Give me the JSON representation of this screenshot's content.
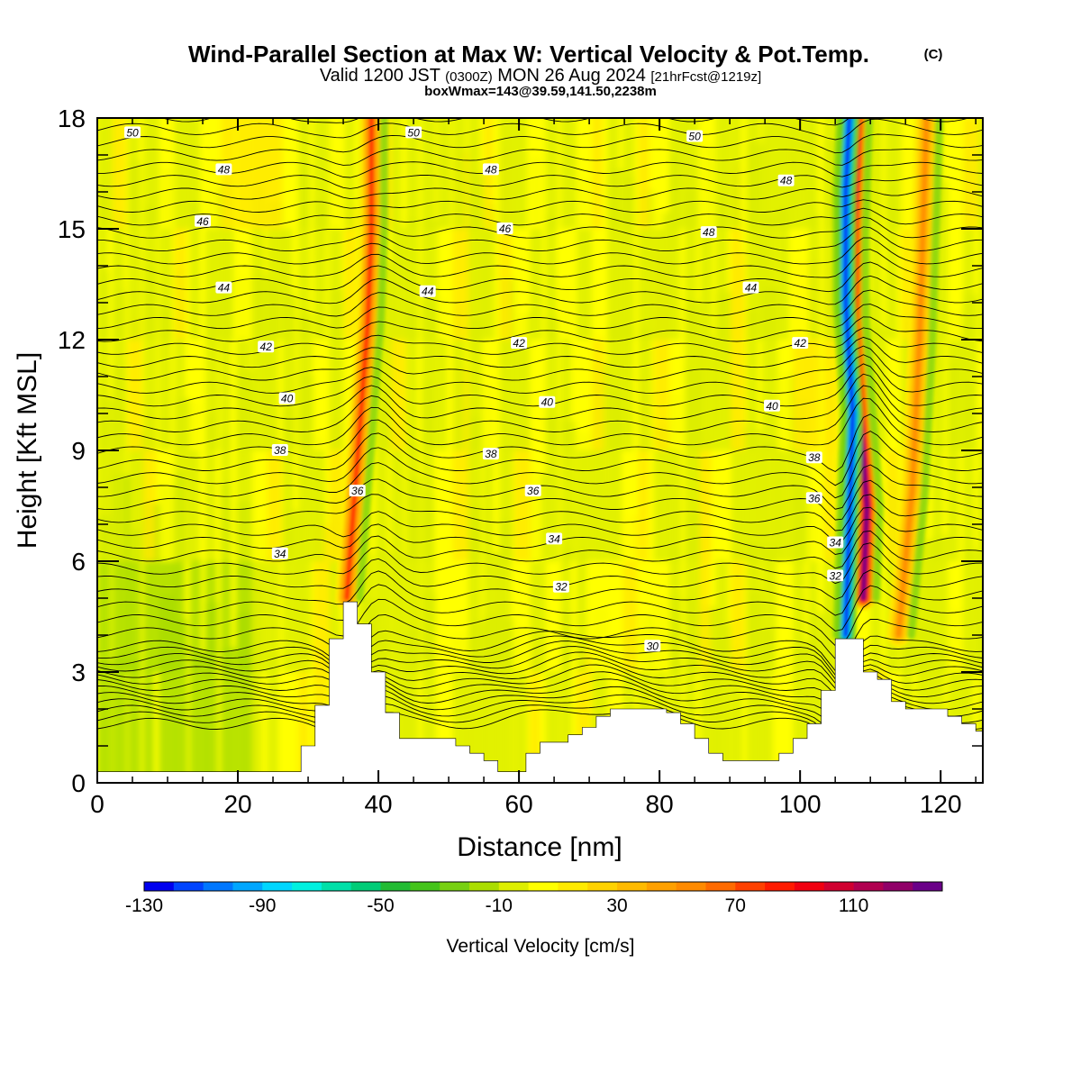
{
  "header": {
    "title": "Wind-Parallel Section at Max W: Vertical Velocity & Pot.Temp.",
    "copyright": "(C)",
    "valid_prefix": "Valid 1200 JST",
    "valid_utc": "(0300Z)",
    "valid_date": "MON 26 Aug 2024",
    "forecast": "[21hrFcst@1219z]",
    "box_info": "boxWmax=143@39.59,141.50,2238m"
  },
  "chart_data": {
    "type": "heatmap",
    "xlabel": "Distance [nm]",
    "ylabel": "Height [Kft MSL]",
    "xlim": [
      0,
      126
    ],
    "ylim": [
      0,
      18
    ],
    "x_ticks": [
      0,
      20,
      40,
      60,
      80,
      100,
      120
    ],
    "y_ticks": [
      0,
      3,
      6,
      9,
      12,
      15,
      18
    ],
    "grid": false,
    "colorbar": {
      "title": "Vertical Velocity [cm/s]",
      "min": -130,
      "max": 140,
      "step": 10,
      "tick_labels": [
        "-130",
        "-90",
        "-50",
        "-10",
        "30",
        "70",
        "110"
      ],
      "tick_values": [
        -130,
        -90,
        -50,
        -10,
        30,
        70,
        110
      ],
      "colors": [
        "#0000ee",
        "#0044ff",
        "#0077ff",
        "#00a6ff",
        "#00d6ff",
        "#00f0e0",
        "#00e0a8",
        "#00cc77",
        "#22bb33",
        "#44c41a",
        "#77d011",
        "#aadd00",
        "#ddee00",
        "#ffff00",
        "#ffea00",
        "#ffd200",
        "#ffba00",
        "#ffa000",
        "#ff8a00",
        "#ff6a00",
        "#ff4000",
        "#ff1a00",
        "#f00010",
        "#d00030",
        "#b00050",
        "#900068",
        "#6a0088"
      ]
    },
    "terrain": {
      "x": [
        0,
        28,
        29,
        31,
        33,
        35,
        37,
        39,
        41,
        43,
        45,
        47,
        49,
        51,
        53,
        55,
        57,
        59,
        61,
        63,
        65,
        67,
        69,
        71,
        73,
        75,
        77,
        79,
        81,
        83,
        85,
        87,
        89,
        91,
        93,
        95,
        97,
        99,
        101,
        103,
        105,
        107,
        109,
        111,
        113,
        115,
        117,
        119,
        121,
        123,
        125,
        126
      ],
      "y": [
        0.3,
        0.3,
        1.0,
        2.1,
        3.9,
        4.9,
        4.3,
        3.0,
        1.9,
        1.2,
        1.2,
        1.2,
        1.2,
        1.0,
        0.8,
        0.6,
        0.3,
        0.3,
        0.8,
        1.1,
        1.1,
        1.3,
        1.5,
        1.8,
        2.0,
        2.0,
        2.0,
        2.0,
        1.9,
        1.6,
        1.2,
        0.8,
        0.6,
        0.6,
        0.6,
        0.6,
        0.8,
        1.2,
        1.6,
        2.5,
        3.9,
        3.9,
        3.0,
        2.8,
        2.2,
        2.0,
        2.0,
        2.0,
        1.8,
        1.6,
        1.4,
        1.3
      ]
    },
    "updraft_bands": [
      {
        "name": "west updraft",
        "points": [
          [
            35.5,
            5.0
          ],
          [
            36.5,
            7.5
          ],
          [
            37.5,
            10.0
          ],
          [
            38.5,
            12.5
          ],
          [
            39.0,
            15.0
          ],
          [
            39.0,
            18.0
          ]
        ],
        "peak": 80
      },
      {
        "name": "east updraft",
        "points": [
          [
            109.0,
            5.0
          ],
          [
            109.5,
            7.5
          ],
          [
            108.5,
            10.0
          ],
          [
            107.5,
            12.5
          ],
          [
            107.5,
            15.0
          ],
          [
            108.0,
            18.0
          ]
        ],
        "peak": 143
      },
      {
        "name": "lee updraft",
        "points": [
          [
            114.0,
            4.0
          ],
          [
            116.0,
            8.0
          ],
          [
            117.0,
            12.0
          ],
          [
            118.0,
            18.0
          ]
        ],
        "peak": 55
      }
    ],
    "downdraft_bands": [
      {
        "name": "east downdraft",
        "points": [
          [
            106.5,
            4.0
          ],
          [
            107.0,
            7.0
          ],
          [
            107.5,
            10.0
          ],
          [
            106.5,
            13.0
          ],
          [
            106.5,
            16.0
          ],
          [
            107.0,
            18.0
          ]
        ],
        "peak": -130
      }
    ],
    "theta_isentropes": {
      "contour_interval": 1,
      "labeled_levels": [
        {
          "level": 50,
          "points": [
            [
              5,
              17.6
            ],
            [
              45,
              17.6
            ],
            [
              85,
              17.5
            ]
          ]
        },
        {
          "level": 48,
          "points": [
            [
              18,
              16.6
            ],
            [
              56,
              16.6
            ],
            [
              98,
              16.3
            ],
            [
              87,
              14.9
            ]
          ]
        },
        {
          "level": 46,
          "points": [
            [
              15,
              15.2
            ],
            [
              58,
              15.0
            ]
          ]
        },
        {
          "level": 44,
          "points": [
            [
              18,
              13.4
            ],
            [
              47,
              13.3
            ],
            [
              93,
              13.4
            ]
          ]
        },
        {
          "level": 42,
          "points": [
            [
              24,
              11.8
            ],
            [
              60,
              11.9
            ],
            [
              100,
              11.9
            ]
          ]
        },
        {
          "level": 40,
          "points": [
            [
              27,
              10.4
            ],
            [
              64,
              10.3
            ],
            [
              96,
              10.2
            ]
          ]
        },
        {
          "level": 38,
          "points": [
            [
              26,
              9.0
            ],
            [
              56,
              8.9
            ],
            [
              102,
              8.8
            ]
          ]
        },
        {
          "level": 36,
          "points": [
            [
              37,
              7.9
            ],
            [
              62,
              7.9
            ],
            [
              102,
              7.7
            ]
          ]
        },
        {
          "level": 34,
          "points": [
            [
              26,
              6.2
            ],
            [
              65,
              6.6
            ],
            [
              105,
              6.5
            ]
          ]
        },
        {
          "level": 32,
          "points": [
            [
              66,
              5.3
            ],
            [
              105,
              5.6
            ]
          ]
        },
        {
          "level": 30,
          "points": [
            [
              79,
              3.7
            ]
          ]
        }
      ]
    }
  }
}
